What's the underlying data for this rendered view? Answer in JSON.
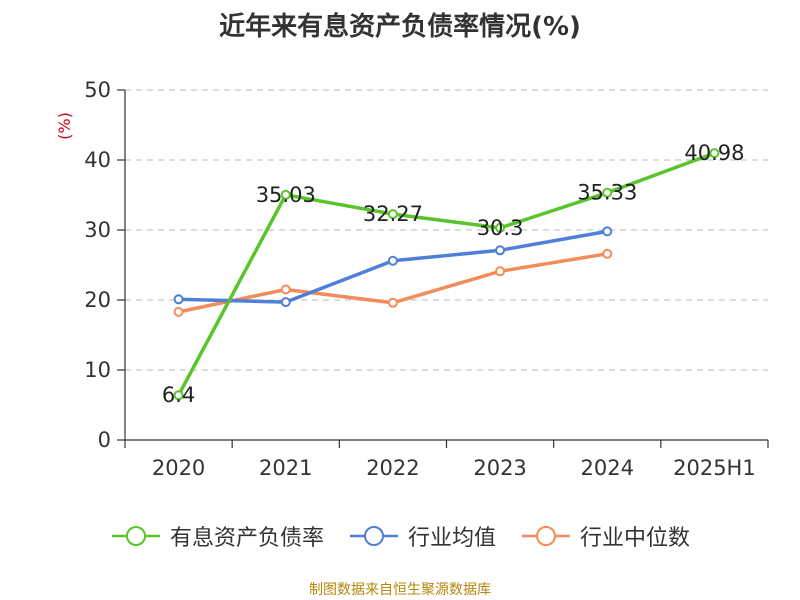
{
  "chart_data": {
    "type": "line",
    "title": "近年来有息资产负债率情况(%)",
    "ylabel": "(%)",
    "categories": [
      "2020",
      "2021",
      "2022",
      "2023",
      "2024",
      "2025H1"
    ],
    "ylim": [
      0,
      50
    ],
    "yticks": [
      0,
      10,
      20,
      30,
      40,
      50
    ],
    "grid": true,
    "legend_position": "bottom",
    "series": [
      {
        "name": "有息资产负债率",
        "color": "#5ac42d",
        "values": [
          6.4,
          35.03,
          32.27,
          30.3,
          35.33,
          40.98
        ],
        "labels": [
          "6.4",
          "35.03",
          "32.27",
          "30.3",
          "35.33",
          "40.98"
        ]
      },
      {
        "name": "行业均值",
        "color": "#4f7fd8",
        "values": [
          20.1,
          19.7,
          25.6,
          27.1,
          29.8,
          null
        ]
      },
      {
        "name": "行业中位数",
        "color": "#f28c5b",
        "values": [
          18.3,
          21.5,
          19.6,
          24.1,
          26.6,
          null
        ]
      }
    ]
  },
  "footer": {
    "source": "制图数据来自恒生聚源数据库"
  }
}
